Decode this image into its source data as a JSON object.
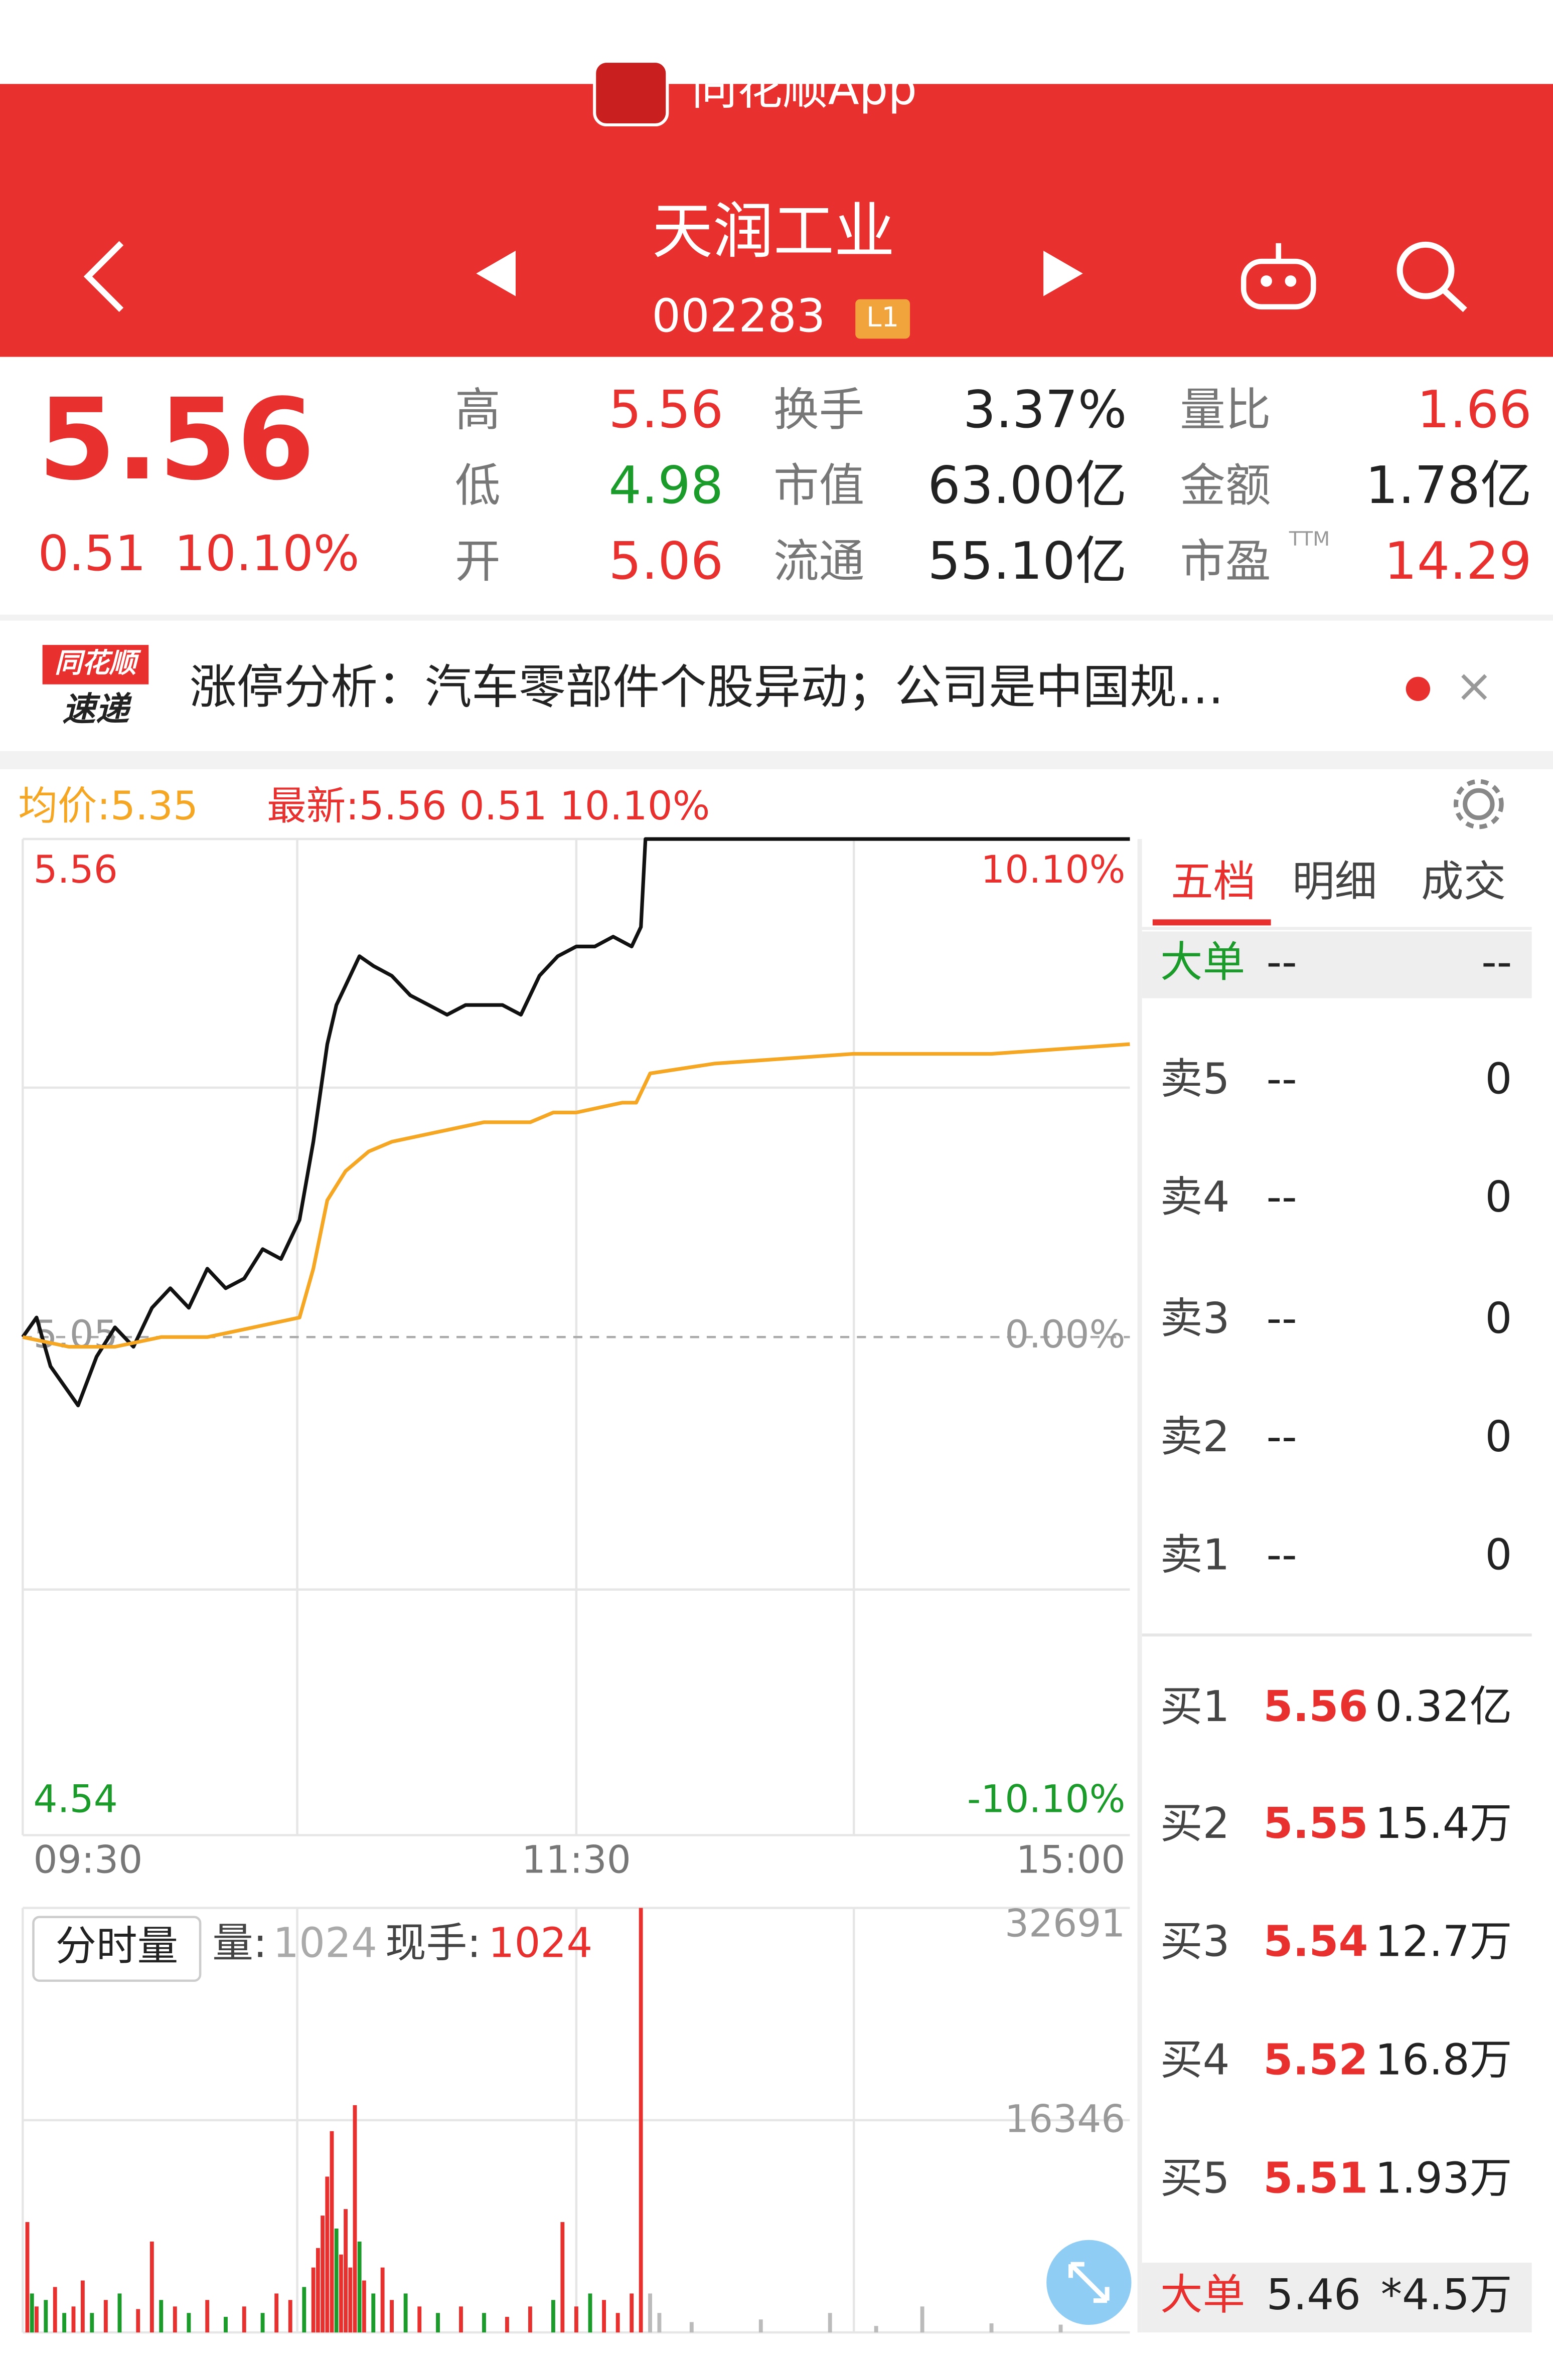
{
  "header": {
    "app": "同花顺App",
    "name": "天润工业",
    "code": "002283",
    "badge": "L1"
  },
  "quote": {
    "price": "5.56",
    "change": "0.51",
    "pct": "10.10%",
    "stats": [
      {
        "label": "高",
        "value": "5.56"
      },
      {
        "label": "换手",
        "value": "3.37%"
      },
      {
        "label": "量比",
        "value": "1.66"
      },
      {
        "label": "低",
        "value": "4.98"
      },
      {
        "label": "市值",
        "value": "63.00亿"
      },
      {
        "label": "金额",
        "value": "1.78亿"
      },
      {
        "label": "开",
        "value": "5.06"
      },
      {
        "label": "流通",
        "value": "55.10亿"
      },
      {
        "label": "市盈",
        "sup": "TTM",
        "value": "14.29"
      }
    ]
  },
  "news": {
    "logo_top": "同花顺",
    "logo_bottom": "速递",
    "text": "涨停分析：汽车零部件个股异动；公司是中国规…",
    "close": "×"
  },
  "chart_data": [
    {
      "type": "line",
      "avg_label": "均价:5.35",
      "latest_label": "最新:5.56 0.51 10.10%",
      "xlim": [
        0,
        240
      ],
      "xticks": [
        {
          "value": 0,
          "label": "09:30"
        },
        {
          "value": 120,
          "label": "11:30"
        },
        {
          "value": 240,
          "label": "15:00"
        }
      ],
      "ylim": [
        4.54,
        5.56
      ],
      "yticks": [
        5.56,
        5.05,
        4.54
      ],
      "y2lim": [
        -10.1,
        10.1
      ],
      "y2ticks": [
        {
          "value": 10.1,
          "label": "10.10%"
        },
        {
          "value": 0,
          "label": "0.00%"
        },
        {
          "value": -10.1,
          "label": "-10.10%"
        }
      ],
      "series": [
        {
          "color": "#111111",
          "x": [
            0,
            3,
            6,
            9,
            12,
            16,
            20,
            24,
            28,
            32,
            36,
            40,
            44,
            48,
            52,
            56,
            60,
            63,
            66,
            68,
            70,
            73,
            76,
            80,
            84,
            88,
            92,
            96,
            100,
            104,
            108,
            112,
            116,
            120,
            124,
            128,
            132,
            134,
            135,
            140,
            160,
            180,
            200,
            220,
            240
          ],
          "values": [
            5.05,
            5.07,
            5.02,
            5.0,
            4.98,
            5.03,
            5.06,
            5.04,
            5.08,
            5.1,
            5.08,
            5.12,
            5.1,
            5.11,
            5.14,
            5.13,
            5.17,
            5.25,
            5.35,
            5.39,
            5.41,
            5.44,
            5.43,
            5.42,
            5.4,
            5.39,
            5.38,
            5.39,
            5.39,
            5.39,
            5.38,
            5.42,
            5.44,
            5.45,
            5.45,
            5.46,
            5.45,
            5.47,
            5.56,
            5.56,
            5.56,
            5.56,
            5.56,
            5.56,
            5.56
          ]
        },
        {
          "color": "#f5a623",
          "x": [
            0,
            10,
            20,
            30,
            40,
            50,
            60,
            63,
            66,
            70,
            75,
            80,
            90,
            100,
            110,
            115,
            120,
            130,
            133,
            136,
            150,
            180,
            210,
            240
          ],
          "values": [
            5.05,
            5.04,
            5.04,
            5.05,
            5.05,
            5.06,
            5.07,
            5.12,
            5.19,
            5.22,
            5.24,
            5.25,
            5.26,
            5.27,
            5.27,
            5.28,
            5.28,
            5.29,
            5.29,
            5.32,
            5.33,
            5.34,
            5.34,
            5.35
          ]
        }
      ]
    },
    {
      "type": "bar",
      "button": "分时量",
      "vol_label": "量:",
      "vol": "1024",
      "hand_label": "现手:",
      "hand": "1024",
      "xlim": [
        0,
        240
      ],
      "ylim": [
        0,
        32691
      ],
      "yticks": [
        32691,
        16346
      ],
      "x": [
        1,
        2,
        3,
        5,
        7,
        9,
        11,
        13,
        15,
        18,
        21,
        25,
        28,
        30,
        33,
        36,
        40,
        44,
        48,
        52,
        55,
        58,
        61,
        63,
        64,
        65,
        66,
        67,
        68,
        69,
        70,
        71,
        72,
        73,
        74,
        76,
        78,
        80,
        83,
        86,
        90,
        95,
        100,
        105,
        110,
        115,
        117,
        120,
        123,
        126,
        129,
        132,
        134,
        136,
        138,
        145,
        160,
        175,
        185,
        195,
        210,
        225
      ],
      "values": [
        8500,
        3000,
        2000,
        2500,
        3500,
        1500,
        2000,
        4000,
        1500,
        2500,
        3000,
        1800,
        7000,
        2500,
        2000,
        1500,
        2500,
        1200,
        2000,
        1500,
        3000,
        2500,
        3500,
        5000,
        6500,
        9000,
        12000,
        15500,
        8000,
        6000,
        9500,
        5000,
        17500,
        7000,
        4000,
        3000,
        5000,
        2500,
        3000,
        2000,
        1500,
        2000,
        1500,
        1200,
        2000,
        2500,
        8500,
        2000,
        3000,
        2500,
        1500,
        3000,
        32691,
        3000,
        1500,
        800,
        1000,
        1500,
        500,
        2000,
        700,
        600
      ],
      "colors": [
        "#e8302f",
        "#1a9b2a",
        "#e8302f",
        "#1a9b2a",
        "#e8302f",
        "#1a9b2a",
        "#e8302f",
        "#e8302f",
        "#1a9b2a",
        "#e8302f",
        "#1a9b2a",
        "#e8302f",
        "#e8302f",
        "#1a9b2a",
        "#e8302f",
        "#1a9b2a",
        "#e8302f",
        "#1a9b2a",
        "#e8302f",
        "#1a9b2a",
        "#e8302f",
        "#e8302f",
        "#1a9b2a",
        "#e8302f",
        "#e8302f",
        "#e8302f",
        "#e8302f",
        "#e8302f",
        "#1a9b2a",
        "#e8302f",
        "#e8302f",
        "#e8302f",
        "#e8302f",
        "#1a9b2a",
        "#e8302f",
        "#1a9b2a",
        "#e8302f",
        "#e8302f",
        "#1a9b2a",
        "#e8302f",
        "#1a9b2a",
        "#e8302f",
        "#1a9b2a",
        "#e8302f",
        "#e8302f",
        "#1a9b2a",
        "#e8302f",
        "#e8302f",
        "#1a9b2a",
        "#e8302f",
        "#e8302f",
        "#e8302f",
        "#e8302f",
        "#bbbbbb",
        "#bbbbbb",
        "#bbbbbb",
        "#bbbbbb",
        "#bbbbbb",
        "#bbbbbb",
        "#bbbbbb",
        "#bbbbbb",
        "#bbbbbb"
      ]
    }
  ],
  "book": {
    "tabs": [
      "五档",
      "明细",
      "成交"
    ],
    "big_top": [
      "大单",
      "--",
      "--"
    ],
    "asks": [
      [
        "卖5",
        "--",
        "0"
      ],
      [
        "卖4",
        "--",
        "0"
      ],
      [
        "卖3",
        "--",
        "0"
      ],
      [
        "卖2",
        "--",
        "0"
      ],
      [
        "卖1",
        "--",
        "0"
      ]
    ],
    "bids": [
      [
        "买1",
        "5.56",
        "0.32亿"
      ],
      [
        "买2",
        "5.55",
        "15.4万"
      ],
      [
        "买3",
        "5.54",
        "12.7万"
      ],
      [
        "买4",
        "5.52",
        "16.8万"
      ],
      [
        "买5",
        "5.51",
        "1.93万"
      ]
    ],
    "big_bottom": [
      "大单",
      "5.46",
      "*4.5万"
    ]
  }
}
